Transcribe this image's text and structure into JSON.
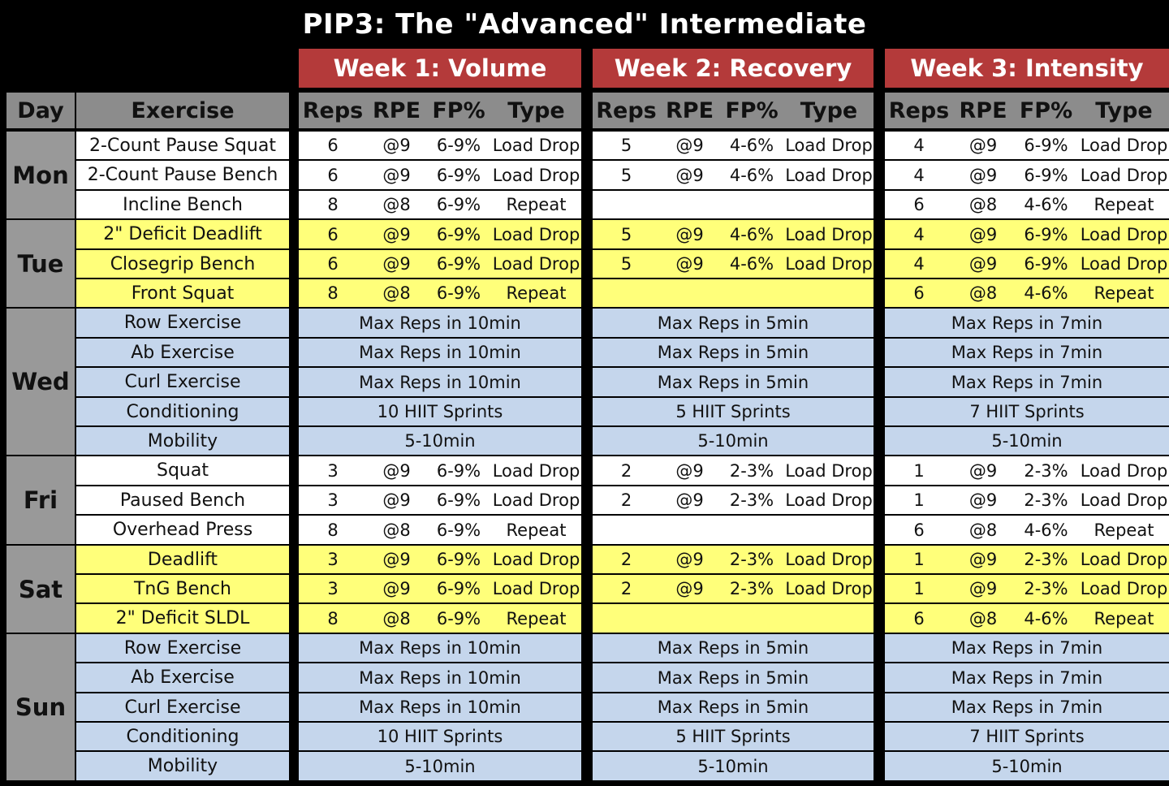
{
  "title": "PIP3: The \"Advanced\" Intermediate",
  "weeks": [
    "Week 1: Volume",
    "Week 2: Recovery",
    "Week 3: Intensity"
  ],
  "headers": {
    "day": "Day",
    "exercise": "Exercise",
    "week_cols": [
      "Reps",
      "RPE",
      "FP%",
      "Type"
    ]
  },
  "days": [
    {
      "name": "Mon",
      "style": "white",
      "exercises": [
        {
          "name": "2-Count Pause Squat",
          "weeks": [
            [
              "6",
              "@9",
              "6-9%",
              "Load Drop"
            ],
            [
              "5",
              "@9",
              "4-6%",
              "Load Drop"
            ],
            [
              "4",
              "@9",
              "6-9%",
              "Load Drop"
            ]
          ]
        },
        {
          "name": "2-Count Pause Bench",
          "weeks": [
            [
              "6",
              "@9",
              "6-9%",
              "Load Drop"
            ],
            [
              "5",
              "@9",
              "4-6%",
              "Load Drop"
            ],
            [
              "4",
              "@9",
              "6-9%",
              "Load Drop"
            ]
          ]
        },
        {
          "name": "Incline Bench",
          "weeks": [
            [
              "8",
              "@8",
              "6-9%",
              "Repeat"
            ],
            [
              "",
              "",
              "",
              ""
            ],
            [
              "6",
              "@8",
              "4-6%",
              "Repeat"
            ]
          ]
        }
      ]
    },
    {
      "name": "Tue",
      "style": "yellow",
      "exercises": [
        {
          "name": "2\" Deficit Deadlift",
          "weeks": [
            [
              "6",
              "@9",
              "6-9%",
              "Load Drop"
            ],
            [
              "5",
              "@9",
              "4-6%",
              "Load Drop"
            ],
            [
              "4",
              "@9",
              "6-9%",
              "Load Drop"
            ]
          ]
        },
        {
          "name": "Closegrip Bench",
          "weeks": [
            [
              "6",
              "@9",
              "6-9%",
              "Load Drop"
            ],
            [
              "5",
              "@9",
              "4-6%",
              "Load Drop"
            ],
            [
              "4",
              "@9",
              "6-9%",
              "Load Drop"
            ]
          ]
        },
        {
          "name": "Front Squat",
          "weeks": [
            [
              "8",
              "@8",
              "6-9%",
              "Repeat"
            ],
            [
              "",
              "",
              "",
              ""
            ],
            [
              "6",
              "@8",
              "4-6%",
              "Repeat"
            ]
          ]
        }
      ]
    },
    {
      "name": "Wed",
      "style": "blue",
      "exercises": [
        {
          "name": "Row Exercise",
          "span": [
            "Max Reps in 10min",
            "Max Reps in 5min",
            "Max Reps in 7min"
          ]
        },
        {
          "name": "Ab Exercise",
          "span": [
            "Max Reps in 10min",
            "Max Reps in 5min",
            "Max Reps in 7min"
          ]
        },
        {
          "name": "Curl Exercise",
          "span": [
            "Max Reps in 10min",
            "Max Reps in 5min",
            "Max Reps in 7min"
          ]
        },
        {
          "name": "Conditioning",
          "span": [
            "10 HIIT Sprints",
            "5 HIIT Sprints",
            "7 HIIT Sprints"
          ]
        },
        {
          "name": "Mobility",
          "span": [
            "5-10min",
            "5-10min",
            "5-10min"
          ]
        }
      ]
    },
    {
      "name": "Fri",
      "style": "white",
      "exercises": [
        {
          "name": "Squat",
          "weeks": [
            [
              "3",
              "@9",
              "6-9%",
              "Load Drop"
            ],
            [
              "2",
              "@9",
              "2-3%",
              "Load Drop"
            ],
            [
              "1",
              "@9",
              "2-3%",
              "Load Drop"
            ]
          ]
        },
        {
          "name": "Paused Bench",
          "weeks": [
            [
              "3",
              "@9",
              "6-9%",
              "Load Drop"
            ],
            [
              "2",
              "@9",
              "2-3%",
              "Load Drop"
            ],
            [
              "1",
              "@9",
              "2-3%",
              "Load Drop"
            ]
          ]
        },
        {
          "name": "Overhead Press",
          "weeks": [
            [
              "8",
              "@8",
              "6-9%",
              "Repeat"
            ],
            [
              "",
              "",
              "",
              ""
            ],
            [
              "6",
              "@8",
              "4-6%",
              "Repeat"
            ]
          ]
        }
      ]
    },
    {
      "name": "Sat",
      "style": "yellow",
      "exercises": [
        {
          "name": "Deadlift",
          "weeks": [
            [
              "3",
              "@9",
              "6-9%",
              "Load Drop"
            ],
            [
              "2",
              "@9",
              "2-3%",
              "Load Drop"
            ],
            [
              "1",
              "@9",
              "2-3%",
              "Load Drop"
            ]
          ]
        },
        {
          "name": "TnG Bench",
          "weeks": [
            [
              "3",
              "@9",
              "6-9%",
              "Load Drop"
            ],
            [
              "2",
              "@9",
              "2-3%",
              "Load Drop"
            ],
            [
              "1",
              "@9",
              "2-3%",
              "Load Drop"
            ]
          ]
        },
        {
          "name": "2\" Deficit SLDL",
          "weeks": [
            [
              "8",
              "@8",
              "6-9%",
              "Repeat"
            ],
            [
              "",
              "",
              "",
              ""
            ],
            [
              "6",
              "@8",
              "4-6%",
              "Repeat"
            ]
          ]
        }
      ]
    },
    {
      "name": "Sun",
      "style": "blue",
      "exercises": [
        {
          "name": "Row Exercise",
          "span": [
            "Max Reps in 10min",
            "Max Reps in 5min",
            "Max Reps in 7min"
          ]
        },
        {
          "name": "Ab Exercise",
          "span": [
            "Max Reps in 10min",
            "Max Reps in 5min",
            "Max Reps in 7min"
          ]
        },
        {
          "name": "Curl Exercise",
          "span": [
            "Max Reps in 10min",
            "Max Reps in 5min",
            "Max Reps in 7min"
          ]
        },
        {
          "name": "Conditioning",
          "span": [
            "10 HIIT Sprints",
            "5 HIIT Sprints",
            "7 HIIT Sprints"
          ]
        },
        {
          "name": "Mobility",
          "span": [
            "5-10min",
            "5-10min",
            "5-10min"
          ]
        }
      ]
    }
  ],
  "colors": {
    "title_bg": "#000000",
    "week_header": "#b43a3a",
    "column_header": "#8c8c8c",
    "day_cell": "#999999",
    "white_rows": "#ffffff",
    "yellow_rows": "#ffff7a",
    "blue_rows": "#c5d6ec"
  }
}
